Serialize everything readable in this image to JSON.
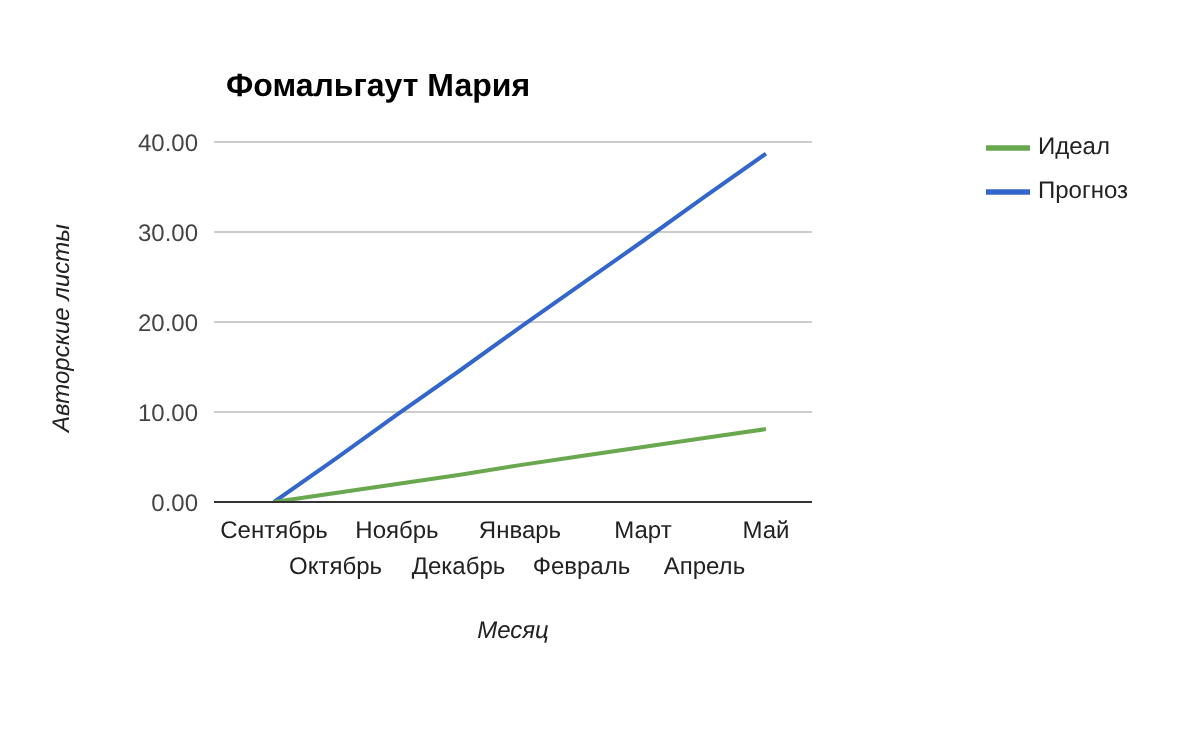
{
  "chart_data": {
    "type": "line",
    "title": "Фомальгаут Мария",
    "xlabel": "Месяц",
    "ylabel": "Авторские листы",
    "categories": [
      "Сентябрь",
      "Октябрь",
      "Ноябрь",
      "Декабрь",
      "Январь",
      "Февраль",
      "Март",
      "Апрель",
      "Май"
    ],
    "series": [
      {
        "name": "Прогноз",
        "color": "#3366cc",
        "values": [
          0,
          4.8,
          9.7,
          14.5,
          19.4,
          24.2,
          29.0,
          33.9,
          38.7
        ]
      },
      {
        "name": "Идеал",
        "color": "#6aa84f",
        "values": [
          0,
          1.0,
          2.0,
          3.0,
          4.1,
          5.1,
          6.1,
          7.1,
          8.1
        ]
      }
    ],
    "ylim": [
      0,
      40
    ],
    "yticks": [
      {
        "value": 0,
        "label": "0.00"
      },
      {
        "value": 10,
        "label": "10.00"
      },
      {
        "value": 20,
        "label": "20.00"
      },
      {
        "value": 30,
        "label": "30.00"
      },
      {
        "value": 40,
        "label": "40.00"
      }
    ],
    "grid": "y",
    "legend": "top right",
    "marker": "none",
    "line_style": "solid"
  }
}
